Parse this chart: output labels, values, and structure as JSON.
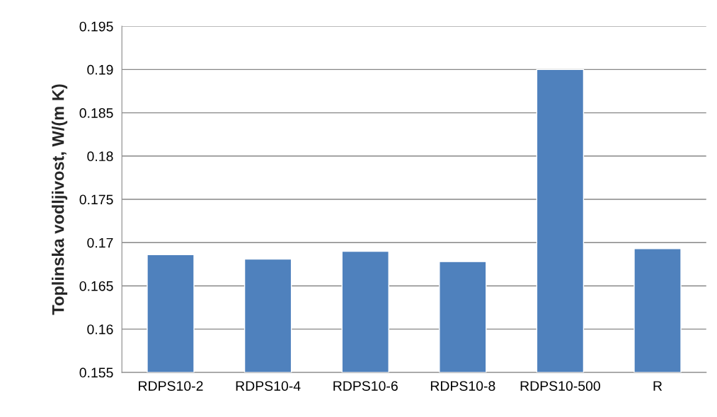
{
  "chart_data": {
    "type": "bar",
    "ylabel": "Toplinska vodljivost, W/(m K)",
    "categories": [
      "RDPS10-2",
      "RDPS10-4",
      "RDPS10-6",
      "RDPS10-8",
      "RDPS10-500",
      "R"
    ],
    "values": [
      0.1686,
      0.1681,
      0.169,
      0.1678,
      0.19,
      0.1693
    ],
    "color": "#4f81bd",
    "ylim": [
      0.155,
      0.195
    ],
    "yticks": [
      0.155,
      0.16,
      0.165,
      0.17,
      0.175,
      0.18,
      0.185,
      0.19,
      0.195
    ],
    "grid": "y"
  }
}
